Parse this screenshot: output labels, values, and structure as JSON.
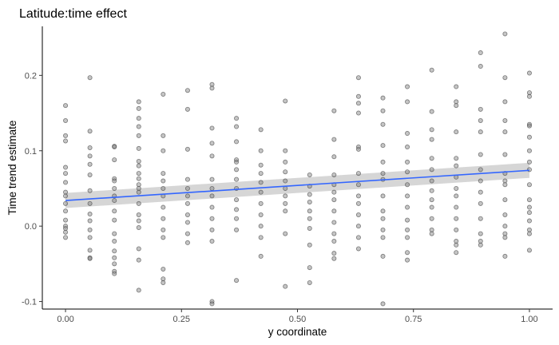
{
  "chart_data": {
    "type": "scatter",
    "title": "Latitude:time effect",
    "xlabel": "y coordinate",
    "ylabel": "Time trend estimate",
    "xlim": [
      -0.05,
      1.05
    ],
    "ylim": [
      -0.11,
      0.265
    ],
    "x_ticks": [
      "0.00",
      "0.25",
      "0.50",
      "0.75",
      "1.00"
    ],
    "x_tick_values": [
      0,
      0.25,
      0.5,
      0.75,
      1
    ],
    "y_ticks": [
      "-0.1",
      "0.0",
      "0.1",
      "0.2"
    ],
    "y_tick_values": [
      -0.1,
      0,
      0.1,
      0.2
    ],
    "grid": false,
    "colors": {
      "points": "#7f7f7f",
      "fit_line": "#3366ff",
      "ribbon": "#c8c8c8",
      "axis": "#000000",
      "tick_label": "#4d4d4d"
    },
    "fit": {
      "method": "linear",
      "x": [
        0,
        1
      ],
      "y": [
        0.034,
        0.074
      ],
      "ci_lower": [
        0.024,
        0.064
      ],
      "ci_upper": [
        0.044,
        0.084
      ]
    },
    "points": [
      {
        "x": 0,
        "y": [
          0.16,
          0.14,
          0.12,
          0.113,
          0.078,
          0.07,
          0.058,
          0.045,
          0.04,
          0.03,
          0.02,
          0.008,
          0.0,
          -0.003,
          -0.008,
          -0.015
        ]
      },
      {
        "x": 0.0526,
        "y": [
          0.197,
          0.126,
          0.104,
          0.093,
          0.082,
          0.068,
          0.047,
          0.03,
          0.016,
          0.007,
          -0.005,
          -0.015,
          -0.032,
          -0.042,
          -0.043
        ]
      },
      {
        "x": 0.1053,
        "y": [
          0.106,
          0.105,
          0.088,
          0.063,
          0.06,
          0.05,
          0.04,
          0.034,
          0.02,
          0.008,
          -0.01,
          -0.02,
          -0.033,
          -0.042,
          -0.05,
          -0.06,
          -0.063
        ]
      },
      {
        "x": 0.1579,
        "y": [
          0.165,
          0.156,
          0.143,
          0.132,
          0.12,
          0.103,
          0.086,
          0.08,
          0.07,
          0.063,
          0.055,
          0.05,
          0.045,
          0.03,
          0.015,
          0.007,
          -0.002,
          -0.03,
          -0.045,
          -0.085
        ]
      },
      {
        "x": 0.2105,
        "y": [
          0.175,
          0.12,
          0.1,
          0.07,
          0.06,
          0.05,
          0.04,
          0.025,
          0.01,
          -0.005,
          -0.015,
          -0.057,
          -0.07,
          -0.075
        ]
      },
      {
        "x": 0.2632,
        "y": [
          0.18,
          0.155,
          0.102,
          0.062,
          0.05,
          0.04,
          0.03,
          0.015,
          0.005,
          -0.01,
          -0.022
        ]
      },
      {
        "x": 0.3158,
        "y": [
          0.188,
          0.183,
          0.13,
          0.11,
          0.093,
          0.062,
          0.05,
          0.04,
          0.025,
          0.01,
          -0.005,
          -0.02,
          -0.1,
          -0.103
        ]
      },
      {
        "x": 0.3684,
        "y": [
          0.143,
          0.132,
          0.112,
          0.088,
          0.085,
          0.075,
          0.062,
          0.05,
          0.035,
          0.022,
          0.01,
          -0.005,
          -0.072
        ]
      },
      {
        "x": 0.4211,
        "y": [
          0.128,
          0.1,
          0.081,
          0.07,
          0.058,
          0.045,
          0.03,
          0.015,
          0.0,
          -0.015,
          -0.04
        ]
      },
      {
        "x": 0.4737,
        "y": [
          0.166,
          0.1,
          0.085,
          0.072,
          0.06,
          0.05,
          0.04,
          0.03,
          0.02,
          -0.01,
          -0.08
        ]
      },
      {
        "x": 0.5263,
        "y": [
          0.068,
          0.053,
          0.042,
          0.032,
          0.02,
          0.01,
          -0.003,
          -0.025,
          -0.055,
          -0.075
        ]
      },
      {
        "x": 0.5789,
        "y": [
          0.153,
          0.115,
          0.092,
          0.068,
          0.055,
          0.045,
          0.035,
          0.02,
          0.005,
          -0.01,
          -0.02,
          -0.036,
          -0.043
        ]
      },
      {
        "x": 0.6316,
        "y": [
          0.197,
          0.172,
          0.163,
          0.15,
          0.105,
          0.102,
          0.07,
          0.055,
          0.04,
          0.03,
          0.015,
          0.0,
          -0.015,
          -0.03
        ]
      },
      {
        "x": 0.6842,
        "y": [
          0.17,
          0.153,
          0.135,
          0.107,
          0.085,
          0.07,
          0.062,
          0.04,
          0.02,
          0.01,
          -0.005,
          -0.015,
          -0.04,
          -0.103
        ]
      },
      {
        "x": 0.7368,
        "y": [
          0.185,
          0.165,
          0.123,
          0.105,
          0.085,
          0.072,
          0.055,
          0.04,
          0.025,
          0.008,
          -0.005,
          -0.015,
          -0.035,
          -0.045
        ]
      },
      {
        "x": 0.7895,
        "y": [
          0.207,
          0.152,
          0.128,
          0.115,
          0.09,
          0.075,
          0.06,
          0.047,
          0.035,
          0.025,
          0.01,
          -0.005,
          -0.01
        ]
      },
      {
        "x": 0.8421,
        "y": [
          0.185,
          0.165,
          0.16,
          0.125,
          0.09,
          0.08,
          0.065,
          0.05,
          0.04,
          0.025,
          0.01,
          -0.005,
          -0.02,
          -0.025,
          -0.035
        ]
      },
      {
        "x": 0.8947,
        "y": [
          0.23,
          0.212,
          0.155,
          0.14,
          0.125,
          0.095,
          0.075,
          0.06,
          0.045,
          0.03,
          0.01,
          -0.01,
          -0.02,
          -0.025
        ]
      },
      {
        "x": 0.9474,
        "y": [
          0.255,
          0.197,
          0.165,
          0.14,
          0.125,
          0.095,
          0.07,
          0.06,
          0.055,
          0.035,
          0.015,
          0.0,
          -0.01,
          -0.015,
          -0.04
        ]
      },
      {
        "x": 1,
        "y": [
          0.203,
          0.177,
          0.172,
          0.135,
          0.133,
          0.118,
          0.1,
          0.085,
          0.075,
          0.055,
          0.035,
          0.025,
          0.018,
          0.007,
          -0.005,
          -0.01,
          -0.032
        ]
      }
    ]
  }
}
